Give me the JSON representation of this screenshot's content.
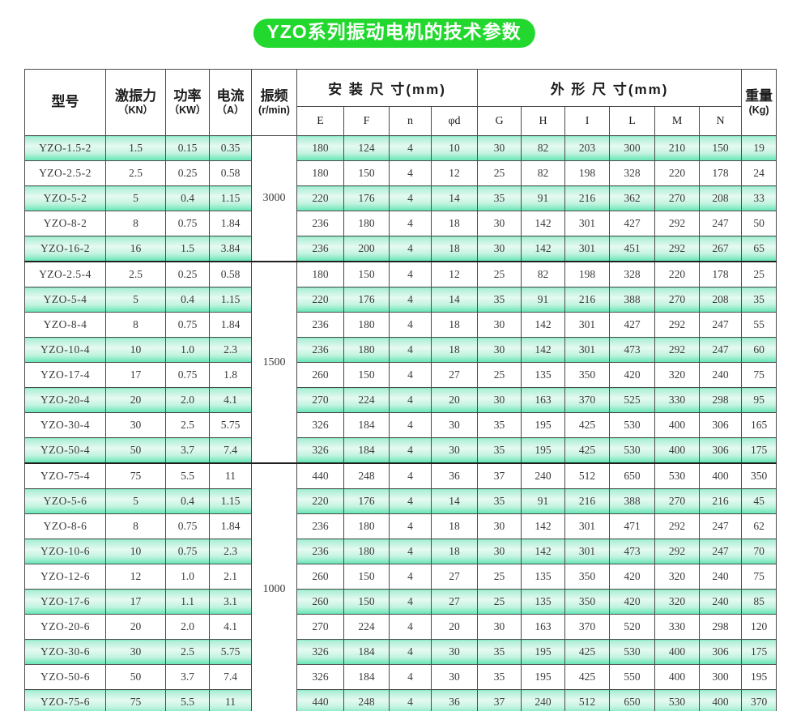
{
  "title": "YZO系列振动电机的技术参数",
  "colors": {
    "title_pill_green": "#22d82e",
    "title_text": "#ffffff",
    "row_green_top": "#a8eed3",
    "row_green_mid": "#e6faf2",
    "row_green_bottom": "#63e6b4",
    "row_white": "#ffffff",
    "grid_border": "#4a4a4a",
    "group_divider": "#1f1f1f",
    "cell_text": "#3a3a3a"
  },
  "table": {
    "headers": {
      "model": "型号",
      "force_line1": "激振力",
      "force_line2": "（KN）",
      "power_line1": "功率",
      "power_line2": "（KW）",
      "current_line1": "电流",
      "current_line2": "（A）",
      "freq_line1": "振频",
      "freq_line2": "(r/min)",
      "install_group": "安 装 尺 寸(mm)",
      "install_cols": [
        "E",
        "F",
        "n",
        "φd"
      ],
      "outline_group": "外 形 尺 寸(mm)",
      "outline_cols": [
        "G",
        "H",
        "I",
        "L",
        "M",
        "N"
      ],
      "weight_line1": "重量",
      "weight_line2": "(Kg)"
    },
    "groups": [
      {
        "rpm": "3000",
        "span": 5
      },
      {
        "rpm": "1500",
        "span": 8
      },
      {
        "rpm": "1000",
        "span": 10
      }
    ],
    "rows": [
      [
        "YZO-1.5-2",
        "1.5",
        "0.15",
        "0.35",
        "180",
        "124",
        "4",
        "10",
        "30",
        "82",
        "203",
        "300",
        "210",
        "150",
        "19"
      ],
      [
        "YZO-2.5-2",
        "2.5",
        "0.25",
        "0.58",
        "180",
        "150",
        "4",
        "12",
        "25",
        "82",
        "198",
        "328",
        "220",
        "178",
        "24"
      ],
      [
        "YZO-5-2",
        "5",
        "0.4",
        "1.15",
        "220",
        "176",
        "4",
        "14",
        "35",
        "91",
        "216",
        "362",
        "270",
        "208",
        "33"
      ],
      [
        "YZO-8-2",
        "8",
        "0.75",
        "1.84",
        "236",
        "180",
        "4",
        "18",
        "30",
        "142",
        "301",
        "427",
        "292",
        "247",
        "50"
      ],
      [
        "YZO-16-2",
        "16",
        "1.5",
        "3.84",
        "236",
        "200",
        "4",
        "18",
        "30",
        "142",
        "301",
        "451",
        "292",
        "267",
        "65"
      ],
      [
        "YZO-2.5-4",
        "2.5",
        "0.25",
        "0.58",
        "180",
        "150",
        "4",
        "12",
        "25",
        "82",
        "198",
        "328",
        "220",
        "178",
        "25"
      ],
      [
        "YZO-5-4",
        "5",
        "0.4",
        "1.15",
        "220",
        "176",
        "4",
        "14",
        "35",
        "91",
        "216",
        "388",
        "270",
        "208",
        "35"
      ],
      [
        "YZO-8-4",
        "8",
        "0.75",
        "1.84",
        "236",
        "180",
        "4",
        "18",
        "30",
        "142",
        "301",
        "427",
        "292",
        "247",
        "55"
      ],
      [
        "YZO-10-4",
        "10",
        "1.0",
        "2.3",
        "236",
        "180",
        "4",
        "18",
        "30",
        "142",
        "301",
        "473",
        "292",
        "247",
        "60"
      ],
      [
        "YZO-17-4",
        "17",
        "0.75",
        "1.8",
        "260",
        "150",
        "4",
        "27",
        "25",
        "135",
        "350",
        "420",
        "320",
        "240",
        "75"
      ],
      [
        "YZO-20-4",
        "20",
        "2.0",
        "4.1",
        "270",
        "224",
        "4",
        "20",
        "30",
        "163",
        "370",
        "525",
        "330",
        "298",
        "95"
      ],
      [
        "YZO-30-4",
        "30",
        "2.5",
        "5.75",
        "326",
        "184",
        "4",
        "30",
        "35",
        "195",
        "425",
        "530",
        "400",
        "306",
        "165"
      ],
      [
        "YZO-50-4",
        "50",
        "3.7",
        "7.4",
        "326",
        "184",
        "4",
        "30",
        "35",
        "195",
        "425",
        "530",
        "400",
        "306",
        "175"
      ],
      [
        "YZO-75-4",
        "75",
        "5.5",
        "11",
        "440",
        "248",
        "4",
        "36",
        "37",
        "240",
        "512",
        "650",
        "530",
        "400",
        "350"
      ],
      [
        "YZO-5-6",
        "5",
        "0.4",
        "1.15",
        "220",
        "176",
        "4",
        "14",
        "35",
        "91",
        "216",
        "388",
        "270",
        "216",
        "45"
      ],
      [
        "YZO-8-6",
        "8",
        "0.75",
        "1.84",
        "236",
        "180",
        "4",
        "18",
        "30",
        "142",
        "301",
        "471",
        "292",
        "247",
        "62"
      ],
      [
        "YZO-10-6",
        "10",
        "0.75",
        "2.3",
        "236",
        "180",
        "4",
        "18",
        "30",
        "142",
        "301",
        "473",
        "292",
        "247",
        "70"
      ],
      [
        "YZO-12-6",
        "12",
        "1.0",
        "2.1",
        "260",
        "150",
        "4",
        "27",
        "25",
        "135",
        "350",
        "420",
        "320",
        "240",
        "75"
      ],
      [
        "YZO-17-6",
        "17",
        "1.1",
        "3.1",
        "260",
        "150",
        "4",
        "27",
        "25",
        "135",
        "350",
        "420",
        "320",
        "240",
        "85"
      ],
      [
        "YZO-20-6",
        "20",
        "2.0",
        "4.1",
        "270",
        "224",
        "4",
        "20",
        "30",
        "163",
        "370",
        "520",
        "330",
        "298",
        "120"
      ],
      [
        "YZO-30-6",
        "30",
        "2.5",
        "5.75",
        "326",
        "184",
        "4",
        "30",
        "35",
        "195",
        "425",
        "530",
        "400",
        "306",
        "175"
      ],
      [
        "YZO-50-6",
        "50",
        "3.7",
        "7.4",
        "326",
        "184",
        "4",
        "30",
        "35",
        "195",
        "425",
        "550",
        "400",
        "300",
        "195"
      ],
      [
        "YZO-75-6",
        "75",
        "5.5",
        "11",
        "440",
        "248",
        "4",
        "36",
        "37",
        "240",
        "512",
        "650",
        "530",
        "400",
        "370"
      ]
    ]
  }
}
